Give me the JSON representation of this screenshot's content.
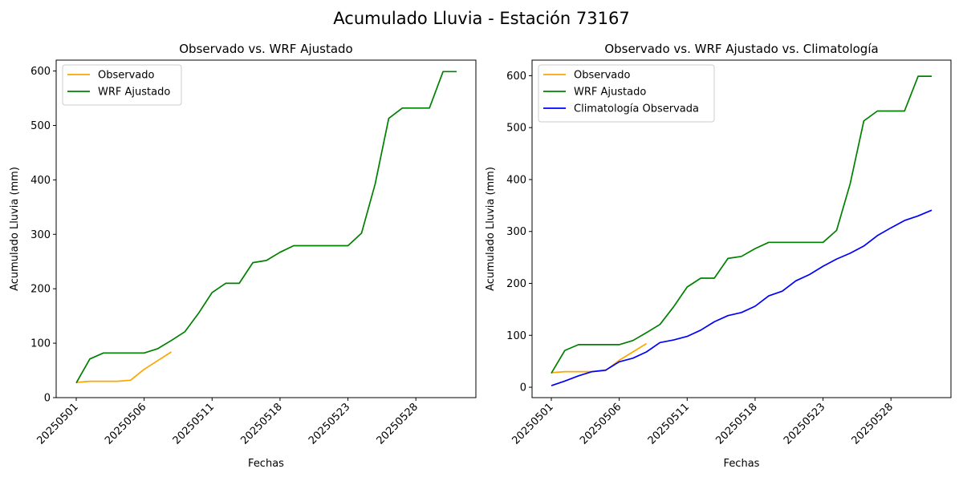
{
  "suptitle": "Acumulado Lluvia - Estación 73167",
  "colors": {
    "observado": "#ffa500",
    "wrf": "#008000",
    "clim": "#0000ff"
  },
  "chart_data": [
    {
      "type": "line",
      "title": "Observado vs. WRF Ajustado",
      "xlabel": "Fechas",
      "ylabel": "Acumulado Lluvia (mm)",
      "x_ticks": [
        "20250501",
        "20250506",
        "20250511",
        "20250518",
        "20250523",
        "20250528"
      ],
      "ylim": [
        0,
        620
      ],
      "y_ticks": [
        0,
        100,
        200,
        300,
        400,
        500,
        600
      ],
      "legend_position": "top-left",
      "grid": false,
      "series": [
        {
          "name": "Observado",
          "color": "#ffa500",
          "values": [
            28,
            30,
            30,
            30,
            32,
            52,
            68,
            84
          ]
        },
        {
          "name": "WRF Ajustado",
          "color": "#008000",
          "values": [
            27,
            71,
            82,
            82,
            82,
            82,
            90,
            105,
            121,
            155,
            193,
            210,
            210,
            248,
            252,
            267,
            279,
            279,
            279,
            279,
            279,
            302,
            392,
            513,
            532,
            532,
            532,
            599,
            599
          ]
        }
      ]
    },
    {
      "type": "line",
      "title": "Observado vs. WRF Ajustado vs. Climatología",
      "xlabel": "Fechas",
      "ylabel": "Acumulado Lluvia (mm)",
      "x_ticks": [
        "20250501",
        "20250506",
        "20250511",
        "20250518",
        "20250523",
        "20250528"
      ],
      "ylim": [
        -20,
        630
      ],
      "y_ticks": [
        0,
        100,
        200,
        300,
        400,
        500,
        600
      ],
      "legend_position": "top-left",
      "grid": false,
      "series": [
        {
          "name": "Observado",
          "color": "#ffa500",
          "values": [
            28,
            30,
            30,
            30,
            32,
            52,
            68,
            84
          ]
        },
        {
          "name": "WRF Ajustado",
          "color": "#008000",
          "values": [
            27,
            71,
            82,
            82,
            82,
            82,
            90,
            105,
            121,
            155,
            193,
            210,
            210,
            248,
            252,
            267,
            279,
            279,
            279,
            279,
            279,
            302,
            392,
            513,
            532,
            532,
            532,
            599,
            599
          ]
        },
        {
          "name": "Climatología Observada",
          "color": "#0000ff",
          "values": [
            3,
            12,
            22,
            30,
            33,
            49,
            56,
            68,
            86,
            91,
            98,
            110,
            126,
            138,
            144,
            156,
            176,
            185,
            205,
            217,
            233,
            247,
            258,
            272,
            292,
            307,
            321,
            330,
            341
          ]
        }
      ]
    }
  ]
}
